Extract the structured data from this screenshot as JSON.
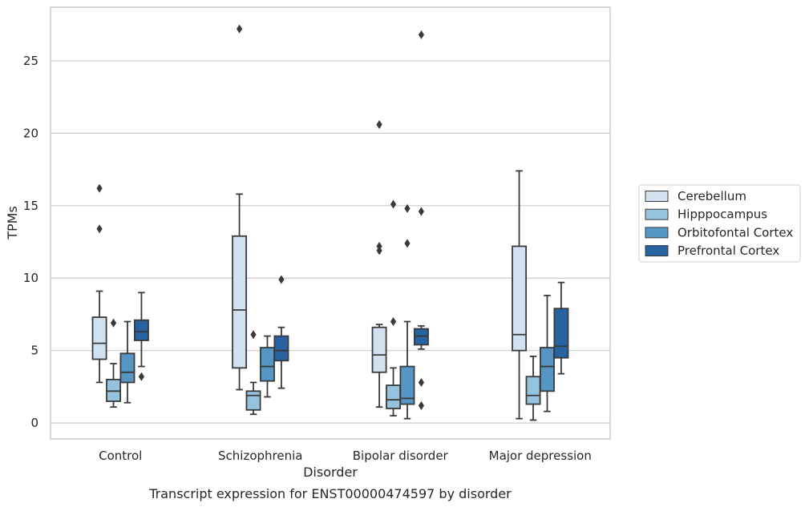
{
  "chart_data": {
    "type": "box",
    "caption": "Transcript expression for ENST00000474597 by disorder",
    "xlabel": "Disorder",
    "ylabel": "TPMs",
    "ylim": [
      -1.1,
      28.7
    ],
    "yticks": [
      0,
      5,
      10,
      15,
      20,
      25
    ],
    "grid": "horizontal",
    "legend_position": "right",
    "categories": [
      "Control",
      "Schizophrenia",
      "Bipolar disorder",
      "Major depression"
    ],
    "series": [
      {
        "name": "Cerebellum",
        "color": "#d1e1f0",
        "boxes": [
          {
            "whisker_low": 2.8,
            "q1": 4.4,
            "median": 5.5,
            "q3": 7.3,
            "whisker_high": 9.1,
            "outliers": [
              13.4,
              16.2
            ]
          },
          {
            "whisker_low": 2.3,
            "q1": 3.8,
            "median": 7.8,
            "q3": 12.9,
            "whisker_high": 15.8,
            "outliers": [
              27.2
            ]
          },
          {
            "whisker_low": 1.1,
            "q1": 3.5,
            "median": 4.7,
            "q3": 6.6,
            "whisker_high": 6.8,
            "outliers": [
              11.9,
              12.2,
              20.6
            ]
          },
          {
            "whisker_low": 0.3,
            "q1": 5.0,
            "median": 6.1,
            "q3": 12.2,
            "whisker_high": 17.4,
            "outliers": []
          }
        ]
      },
      {
        "name": "Hipppocampus",
        "color": "#95c2dd",
        "boxes": [
          {
            "whisker_low": 1.1,
            "q1": 1.5,
            "median": 2.2,
            "q3": 3.0,
            "whisker_high": 4.1,
            "outliers": [
              6.9
            ]
          },
          {
            "whisker_low": 0.6,
            "q1": 0.9,
            "median": 1.9,
            "q3": 2.2,
            "whisker_high": 2.8,
            "outliers": [
              6.1
            ]
          },
          {
            "whisker_low": 0.5,
            "q1": 1.0,
            "median": 1.6,
            "q3": 2.6,
            "whisker_high": 3.8,
            "outliers": [
              7.0,
              15.1
            ]
          },
          {
            "whisker_low": 0.2,
            "q1": 1.3,
            "median": 1.9,
            "q3": 3.2,
            "whisker_high": 4.6,
            "outliers": []
          }
        ]
      },
      {
        "name": "Orbitofontal Cortex",
        "color": "#5596c5",
        "boxes": [
          {
            "whisker_low": 1.4,
            "q1": 2.8,
            "median": 3.5,
            "q3": 4.8,
            "whisker_high": 7.0,
            "outliers": []
          },
          {
            "whisker_low": 1.8,
            "q1": 2.9,
            "median": 3.9,
            "q3": 5.2,
            "whisker_high": 6.0,
            "outliers": []
          },
          {
            "whisker_low": 0.3,
            "q1": 1.3,
            "median": 1.7,
            "q3": 3.9,
            "whisker_high": 7.0,
            "outliers": [
              12.4,
              14.8
            ]
          },
          {
            "whisker_low": 0.8,
            "q1": 2.2,
            "median": 3.9,
            "q3": 5.2,
            "whisker_high": 8.8,
            "outliers": []
          }
        ]
      },
      {
        "name": "Prefrontal Cortex",
        "color": "#2763a1",
        "boxes": [
          {
            "whisker_low": 3.9,
            "q1": 5.7,
            "median": 6.3,
            "q3": 7.1,
            "whisker_high": 9.0,
            "outliers": [
              3.2
            ]
          },
          {
            "whisker_low": 2.4,
            "q1": 4.3,
            "median": 5.0,
            "q3": 6.0,
            "whisker_high": 6.6,
            "outliers": [
              9.9
            ]
          },
          {
            "whisker_low": 5.1,
            "q1": 5.4,
            "median": 6.0,
            "q3": 6.5,
            "whisker_high": 6.7,
            "outliers": [
              1.2,
              2.8,
              14.6,
              26.8
            ]
          },
          {
            "whisker_low": 3.4,
            "q1": 4.5,
            "median": 5.3,
            "q3": 7.9,
            "whisker_high": 9.7,
            "outliers": []
          }
        ]
      }
    ]
  }
}
